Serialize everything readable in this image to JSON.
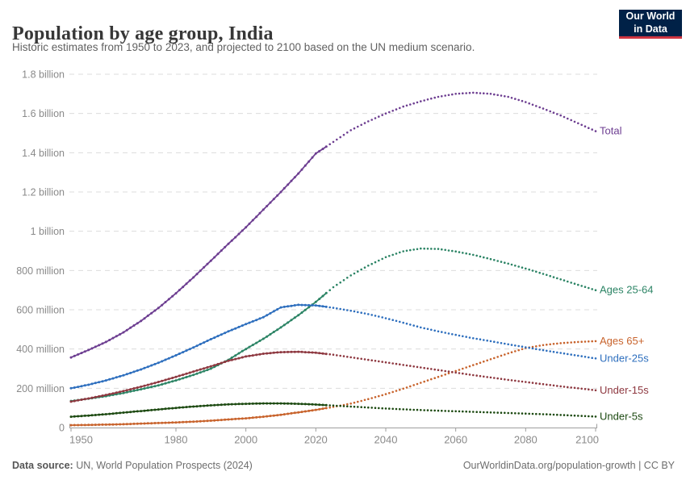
{
  "header": {
    "title": "Population by age group, India",
    "subtitle": "Historic estimates from 1950 to 2023, and projected to 2100 based on the UN medium scenario.",
    "logo": {
      "line1": "Our World",
      "line2": "in Data",
      "bg_color": "#002147",
      "accent_color": "#cf3541"
    }
  },
  "footer": {
    "source_label": "Data source:",
    "source": "UN, World Population Prospects (2024)",
    "link": "OurWorldinData.org/population-growth | CC BY"
  },
  "chart_data": {
    "type": "line",
    "title": "Population by age group, India",
    "units": "millions of people",
    "grid": true,
    "legend_position": "right-end-labels",
    "ylim": [
      0,
      1800
    ],
    "xlim": [
      1950,
      2100
    ],
    "projected_from": 2023,
    "xticks": [
      1950,
      1980,
      2000,
      2020,
      2040,
      2060,
      2080,
      2100
    ],
    "yticks": [
      {
        "value": 0,
        "label": "0"
      },
      {
        "value": 200,
        "label": "200 million"
      },
      {
        "value": 400,
        "label": "400 million"
      },
      {
        "value": 600,
        "label": "600 million"
      },
      {
        "value": 800,
        "label": "800 million"
      },
      {
        "value": 1000,
        "label": "1 billion"
      },
      {
        "value": 1200,
        "label": "1.2 billion"
      },
      {
        "value": 1400,
        "label": "1.4 billion"
      },
      {
        "value": 1600,
        "label": "1.6 billion"
      },
      {
        "value": 1800,
        "label": "1.8 billion"
      }
    ],
    "x": [
      1950,
      1955,
      1960,
      1965,
      1970,
      1975,
      1980,
      1985,
      1990,
      1995,
      2000,
      2005,
      2010,
      2015,
      2020,
      2025,
      2030,
      2035,
      2040,
      2045,
      2050,
      2055,
      2060,
      2065,
      2070,
      2075,
      2080,
      2085,
      2090,
      2095,
      2100
    ],
    "series": [
      {
        "name": "Total",
        "color": "#6d3e91",
        "values": [
          357,
          395,
          436,
          485,
          543,
          609,
          684,
          765,
          850,
          936,
          1020,
          1110,
          1200,
          1294,
          1396,
          1455,
          1515,
          1560,
          1600,
          1635,
          1662,
          1685,
          1700,
          1706,
          1700,
          1685,
          1658,
          1625,
          1590,
          1550,
          1510
        ]
      },
      {
        "name": "Ages 25-64",
        "color": "#2c8465",
        "values": [
          135,
          147,
          160,
          176,
          195,
          215,
          240,
          268,
          300,
          345,
          400,
          452,
          510,
          572,
          640,
          715,
          775,
          825,
          868,
          898,
          912,
          910,
          897,
          880,
          858,
          835,
          810,
          783,
          755,
          727,
          700
        ]
      },
      {
        "name": "Ages 65+",
        "color": "#c8632c",
        "values": [
          12,
          13,
          15,
          17,
          20,
          23,
          26,
          30,
          35,
          41,
          47,
          55,
          65,
          77,
          90,
          105,
          122,
          145,
          170,
          198,
          228,
          258,
          288,
          318,
          348,
          378,
          405,
          420,
          430,
          436,
          440
        ]
      },
      {
        "name": "Under-25s",
        "color": "#2e6fbe",
        "values": [
          200,
          218,
          240,
          266,
          296,
          330,
          368,
          408,
          450,
          490,
          527,
          562,
          612,
          625,
          622,
          610,
          595,
          578,
          557,
          534,
          510,
          490,
          472,
          455,
          440,
          424,
          409,
          394,
          380,
          366,
          352
        ]
      },
      {
        "name": "Under-15s",
        "color": "#8e3840",
        "values": [
          132,
          148,
          166,
          186,
          208,
          232,
          258,
          285,
          312,
          340,
          362,
          376,
          384,
          386,
          381,
          371,
          358,
          345,
          332,
          319,
          306,
          293,
          280,
          267,
          255,
          243,
          232,
          221,
          210,
          200,
          190
        ]
      },
      {
        "name": "Under-5s",
        "color": "#1d4a12",
        "values": [
          55,
          61,
          68,
          76,
          84,
          92,
          100,
          107,
          113,
          118,
          121,
          123,
          123,
          121,
          117,
          112,
          107,
          102,
          97,
          93,
          89,
          86,
          83,
          80,
          77,
          74,
          71,
          68,
          64,
          60,
          56
        ]
      }
    ]
  }
}
